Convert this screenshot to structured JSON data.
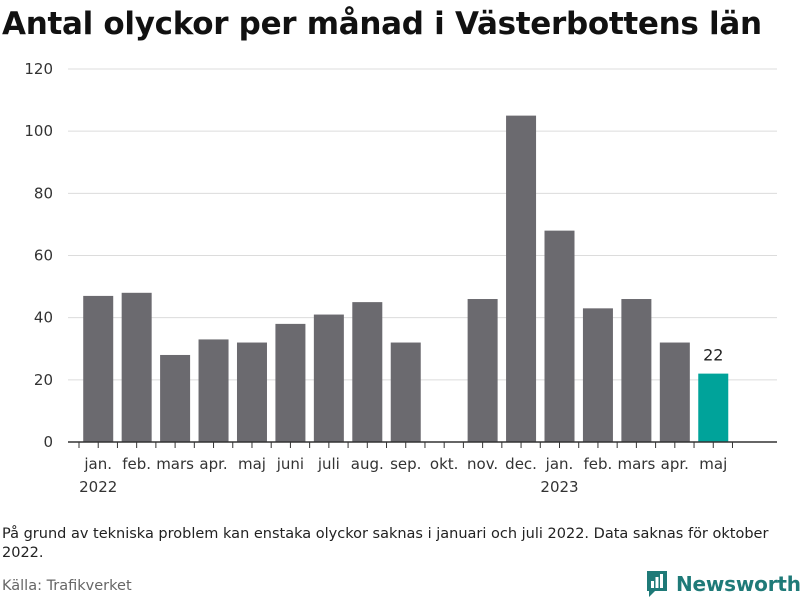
{
  "title": "Antal olyckor per månad i Västerbottens län",
  "footnote": "På grund av tekniska problem kan enstaka olyckor saknas i januari och juli 2022. Data saknas för oktober 2022.",
  "source": "Källa: Trafikverket",
  "brand": {
    "name": "Newsworthy",
    "color": "#1f7a78"
  },
  "chart_data": {
    "type": "bar",
    "categories": [
      "jan.",
      "feb.",
      "mars",
      "apr.",
      "maj",
      "juni",
      "juli",
      "aug.",
      "sep.",
      "okt.",
      "nov.",
      "dec.",
      "jan.",
      "feb.",
      "mars",
      "apr.",
      "maj"
    ],
    "year_labels": [
      {
        "index": 0,
        "label": "2022"
      },
      {
        "index": 12,
        "label": "2023"
      }
    ],
    "values": [
      47,
      48,
      28,
      33,
      32,
      38,
      41,
      45,
      32,
      null,
      46,
      105,
      68,
      43,
      46,
      32,
      22
    ],
    "highlight_index": 16,
    "highlight_label": "22",
    "colors": {
      "bar": "#6b6a6f",
      "highlight": "#00a39a",
      "grid": "#dcdcdc",
      "axis": "#333333"
    },
    "yticks": [
      0,
      20,
      40,
      60,
      80,
      100,
      120
    ],
    "ylim": [
      0,
      120
    ],
    "grid": true
  }
}
